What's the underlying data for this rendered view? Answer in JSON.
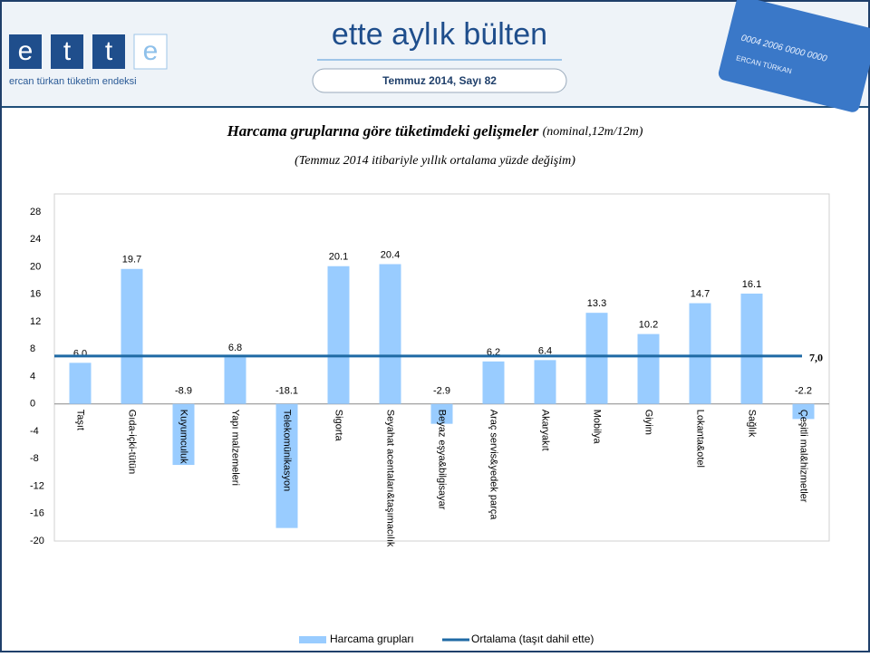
{
  "header": {
    "logo_letters": [
      "e",
      "t",
      "t",
      "e"
    ],
    "logo_tagline": "ercan türkan tüketim endeksi",
    "bulletin_title": "ette aylık bülten",
    "issue": "Temmuz 2014, Sayı 82",
    "card_number": "0004 2006 0000 0000",
    "card_name": "ERCAN TÜRKAN"
  },
  "chart_data": {
    "type": "bar",
    "title": "Harcama gruplarına göre tüketimdeki gelişmeler",
    "title_note": "(nominal,12m/12m)",
    "subtitle": "(Temmuz 2014 itibariyle yıllık ortalama yüzde değişim)",
    "categories": [
      "Taşıt",
      "Gıda-içki-tütün",
      "Kuyumculuk",
      "Yapı malzemeleri",
      "Telekomünikasyon",
      "Sigorta",
      "Seyahat acentaları&taşımacılık",
      "Beyaz eşya&bilgisayar",
      "Araç servis&yedek parça",
      "Akaryakıt",
      "Mobilya",
      "Giyim",
      "Lokanta&otel",
      "Sağlık",
      "Çeşitli mal&hizmetler"
    ],
    "series": [
      {
        "name": "Harcama grupları",
        "color": "#99ccff",
        "values": [
          6.0,
          19.7,
          -8.9,
          6.8,
          -18.1,
          20.1,
          20.4,
          -2.9,
          6.2,
          6.4,
          13.3,
          10.2,
          14.7,
          16.1,
          -2.2
        ],
        "value_labels": [
          "6.0",
          "19.7",
          "-8.9",
          "6.8",
          "-18.1",
          "20.1",
          "20.4",
          "-2.9",
          "6.2",
          "6.4",
          "13.3",
          "10.2",
          "14.7",
          "16.1",
          "-2.2"
        ]
      }
    ],
    "reference_line": {
      "name": "Ortalama (taşıt dahil ette)",
      "value": 7,
      "label": "7,0",
      "color": "#1f6aa5"
    },
    "ylim": [
      -20,
      28
    ],
    "yticks": [
      -20,
      -16,
      -12,
      -8,
      -4,
      0,
      4,
      8,
      12,
      16,
      20,
      24,
      28
    ],
    "grid": false,
    "legend": "bottom"
  }
}
